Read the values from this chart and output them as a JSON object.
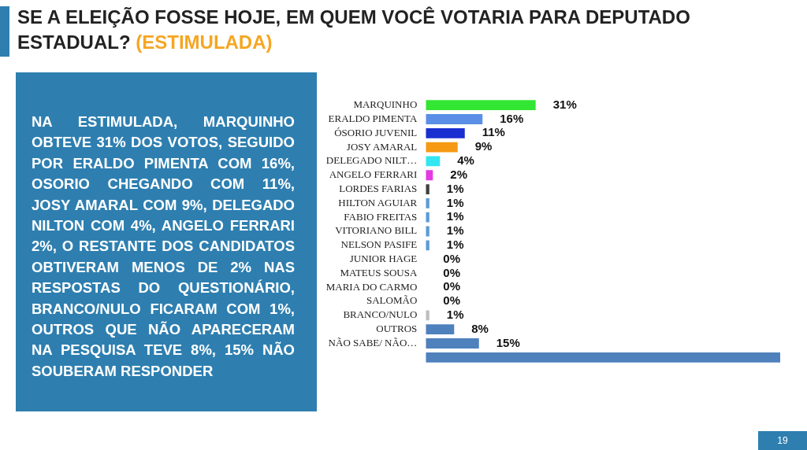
{
  "chart_data": {
    "type": "bar",
    "orientation": "horizontal",
    "title": "SE A ELEIÇÃO FOSSE HOJE, EM QUEM VOCÊ VOTARIA PARA DEPUTADO ESTADUAL?",
    "subtitle": "(ESTIMULADA)",
    "categories": [
      "MARQUINHO",
      "ERALDO PIMENTA",
      "ÓSORIO JUVENIL",
      "JOSY AMARAL",
      "DELEGADO NILT…",
      "ANGELO FERRARI",
      "LORDES FARIAS",
      "HILTON AGUIAR",
      "FABIO FREITAS",
      "VITORIANO BILL",
      "NELSON PASIFE",
      "JUNIOR HAGE",
      "MATEUS SOUSA",
      "MARIA DO CARMO",
      "SALOMÃO",
      "BRANCO/NULO",
      "OUTROS",
      "NÃO SABE/ NÃO…",
      null
    ],
    "values": [
      31,
      16,
      11,
      9,
      4,
      2,
      1,
      1,
      1,
      1,
      1,
      0,
      0,
      0,
      0,
      1,
      8,
      15,
      100
    ],
    "value_labels": [
      "31%",
      "16%",
      "11%",
      "9%",
      "4%",
      "2%",
      "1%",
      "1%",
      "1%",
      "1%",
      "1%",
      "0%",
      "0%",
      "0%",
      "0%",
      "1%",
      "8%",
      "15%",
      null
    ],
    "colors": [
      "#33e633",
      "#5b8ee6",
      "#1a2fd0",
      "#f59a12",
      "#33e6f0",
      "#e33ae3",
      "#404040",
      "#5b9bd5",
      "#5b9bd5",
      "#5b9bd5",
      "#5b9bd5",
      "#5b9bd5",
      "#5b9bd5",
      "#5b9bd5",
      "#5b9bd5",
      "#bfbfbf",
      "#4f81bd",
      "#4f81bd",
      "#4f81bd"
    ],
    "xlim": [
      0,
      100
    ],
    "legend": false,
    "tick_labels": "y",
    "annotations": [
      "NA ESTIMULADA, MARQUINHO OBTEVE 31% DOS VOTOS, SEGUIDO POR ERALDO PIMENTA COM 16%, OSORIO CHEGANDO COM 11%, JOSY AMARAL COM 9%, DELEGADO NILTON COM 4%, ANGELO FERRARI 2%, O RESTANTE DOS CANDIDATOS OBTIVERAM MENOS DE 2% NAS RESPOSTAS DO QUESTIONÁRIO, BRANCO/NULO FICARAM COM 1%, OUTROS QUE NÃO APARECERAM NA PESQUISA TEVE 8%, 15% NÃO SOUBERAM RESPONDER",
      "19"
    ]
  }
}
